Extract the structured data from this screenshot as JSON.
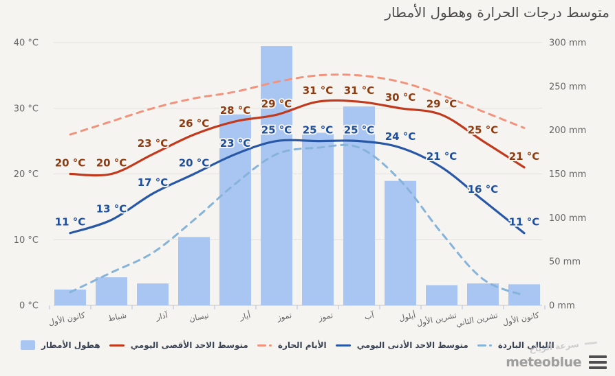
{
  "title": "متوسط درجات الحرارة وهطول الأمطار",
  "months": [
    "كانون الأول",
    "شباط",
    "آذار",
    "نيسان",
    "أيار",
    "تموز",
    "تموز",
    "آب",
    "أيلول",
    "تشرين الأول",
    "تشرين الثاني",
    "كانون الأول"
  ],
  "y_axis_left": {
    "unit": "°C",
    "tick_values": [
      40,
      30,
      20,
      10,
      0
    ],
    "tick_labels": [
      "40 °C",
      "30 °C",
      "20 °C",
      "10 °C",
      "0 °C"
    ]
  },
  "y_axis_right": {
    "unit": "mm",
    "tick_values": [
      300,
      250,
      200,
      150,
      100,
      50,
      0
    ],
    "tick_labels": [
      "300 mm",
      "250 mm",
      "200 mm",
      "150 mm",
      "100 mm",
      "50 mm",
      "0 mm"
    ]
  },
  "chart_data": {
    "type": "composite-bar-line",
    "categories": [
      "كانون الأول",
      "شباط",
      "آذار",
      "نيسان",
      "أيار",
      "تموز",
      "تموز",
      "آب",
      "أيلول",
      "تشرين الأول",
      "تشرين الثاني",
      "كانون الأول"
    ],
    "temp_axis_range": [
      0,
      40
    ],
    "precip_axis_range": [
      0,
      300
    ],
    "grid_on_temps": [
      40,
      30,
      20,
      10,
      0
    ],
    "series": [
      {
        "name": "هطول الأمطار",
        "type": "bar",
        "unit": "mm",
        "color": "#a9c6f2",
        "values": [
          18,
          32,
          25,
          78,
          218,
          296,
          197,
          227,
          142,
          23,
          25,
          24
        ],
        "data_labels": false
      },
      {
        "name": "الليالي الباردة",
        "type": "line",
        "dash": "dashed",
        "unit": "°C",
        "color": "#85b3d9",
        "values": [
          2,
          5,
          8,
          13,
          18.5,
          23,
          24,
          24,
          19,
          11,
          4,
          1.5
        ],
        "data_labels": false
      },
      {
        "name": "الأيام الحارة",
        "type": "line",
        "dash": "dashed",
        "unit": "°C",
        "color": "#f2937e",
        "values": [
          26,
          28,
          30,
          31.5,
          32.5,
          34,
          35,
          35,
          34,
          32,
          29.5,
          27
        ],
        "data_labels": false
      },
      {
        "name": "متوسط الاحد الأدنى اليومي",
        "type": "line",
        "dash": "solid",
        "unit": "°C",
        "color": "#2857a6",
        "label_color": "#1d4e9b",
        "values": [
          11,
          13,
          17,
          20,
          23,
          25,
          25,
          25,
          24,
          21,
          16,
          11
        ],
        "data_labels": true
      },
      {
        "name": "متوسط الاحد الأقصى اليومي",
        "type": "line",
        "dash": "solid",
        "unit": "°C",
        "color": "#c23a1d",
        "label_color": "#8d3b10",
        "values": [
          20,
          20,
          23,
          26,
          28,
          29,
          31,
          31,
          30,
          29,
          25,
          21
        ],
        "data_labels": true
      }
    ]
  },
  "legend": {
    "items": [
      {
        "label": "هطول الأمطار",
        "marker": "square",
        "color": "#a9c6f2"
      },
      {
        "label": "متوسط الاحد الأقصى اليومي",
        "marker": "line",
        "color": "#c23a1d"
      },
      {
        "label": "الأيام الحارة",
        "marker": "dashdot",
        "color": "#f2937e"
      },
      {
        "label": "متوسط الاحد الأدنى اليومي",
        "marker": "line",
        "color": "#2857a6"
      },
      {
        "label": "الليالي الباردة",
        "marker": "dashdot",
        "color": "#85b3d9"
      }
    ],
    "disabled_item": {
      "label": "سرعة الرياح",
      "color": "#cbcbcb"
    }
  },
  "branding": {
    "logo_text": "meteoblue"
  },
  "colors": {
    "background": "#f5f4f1",
    "gridline": "#e2e0dd",
    "axis_line": "#c9c7c3",
    "axis_tick": "#aebfdd",
    "axis_label": "#666666",
    "title": "#4a4a4a"
  }
}
